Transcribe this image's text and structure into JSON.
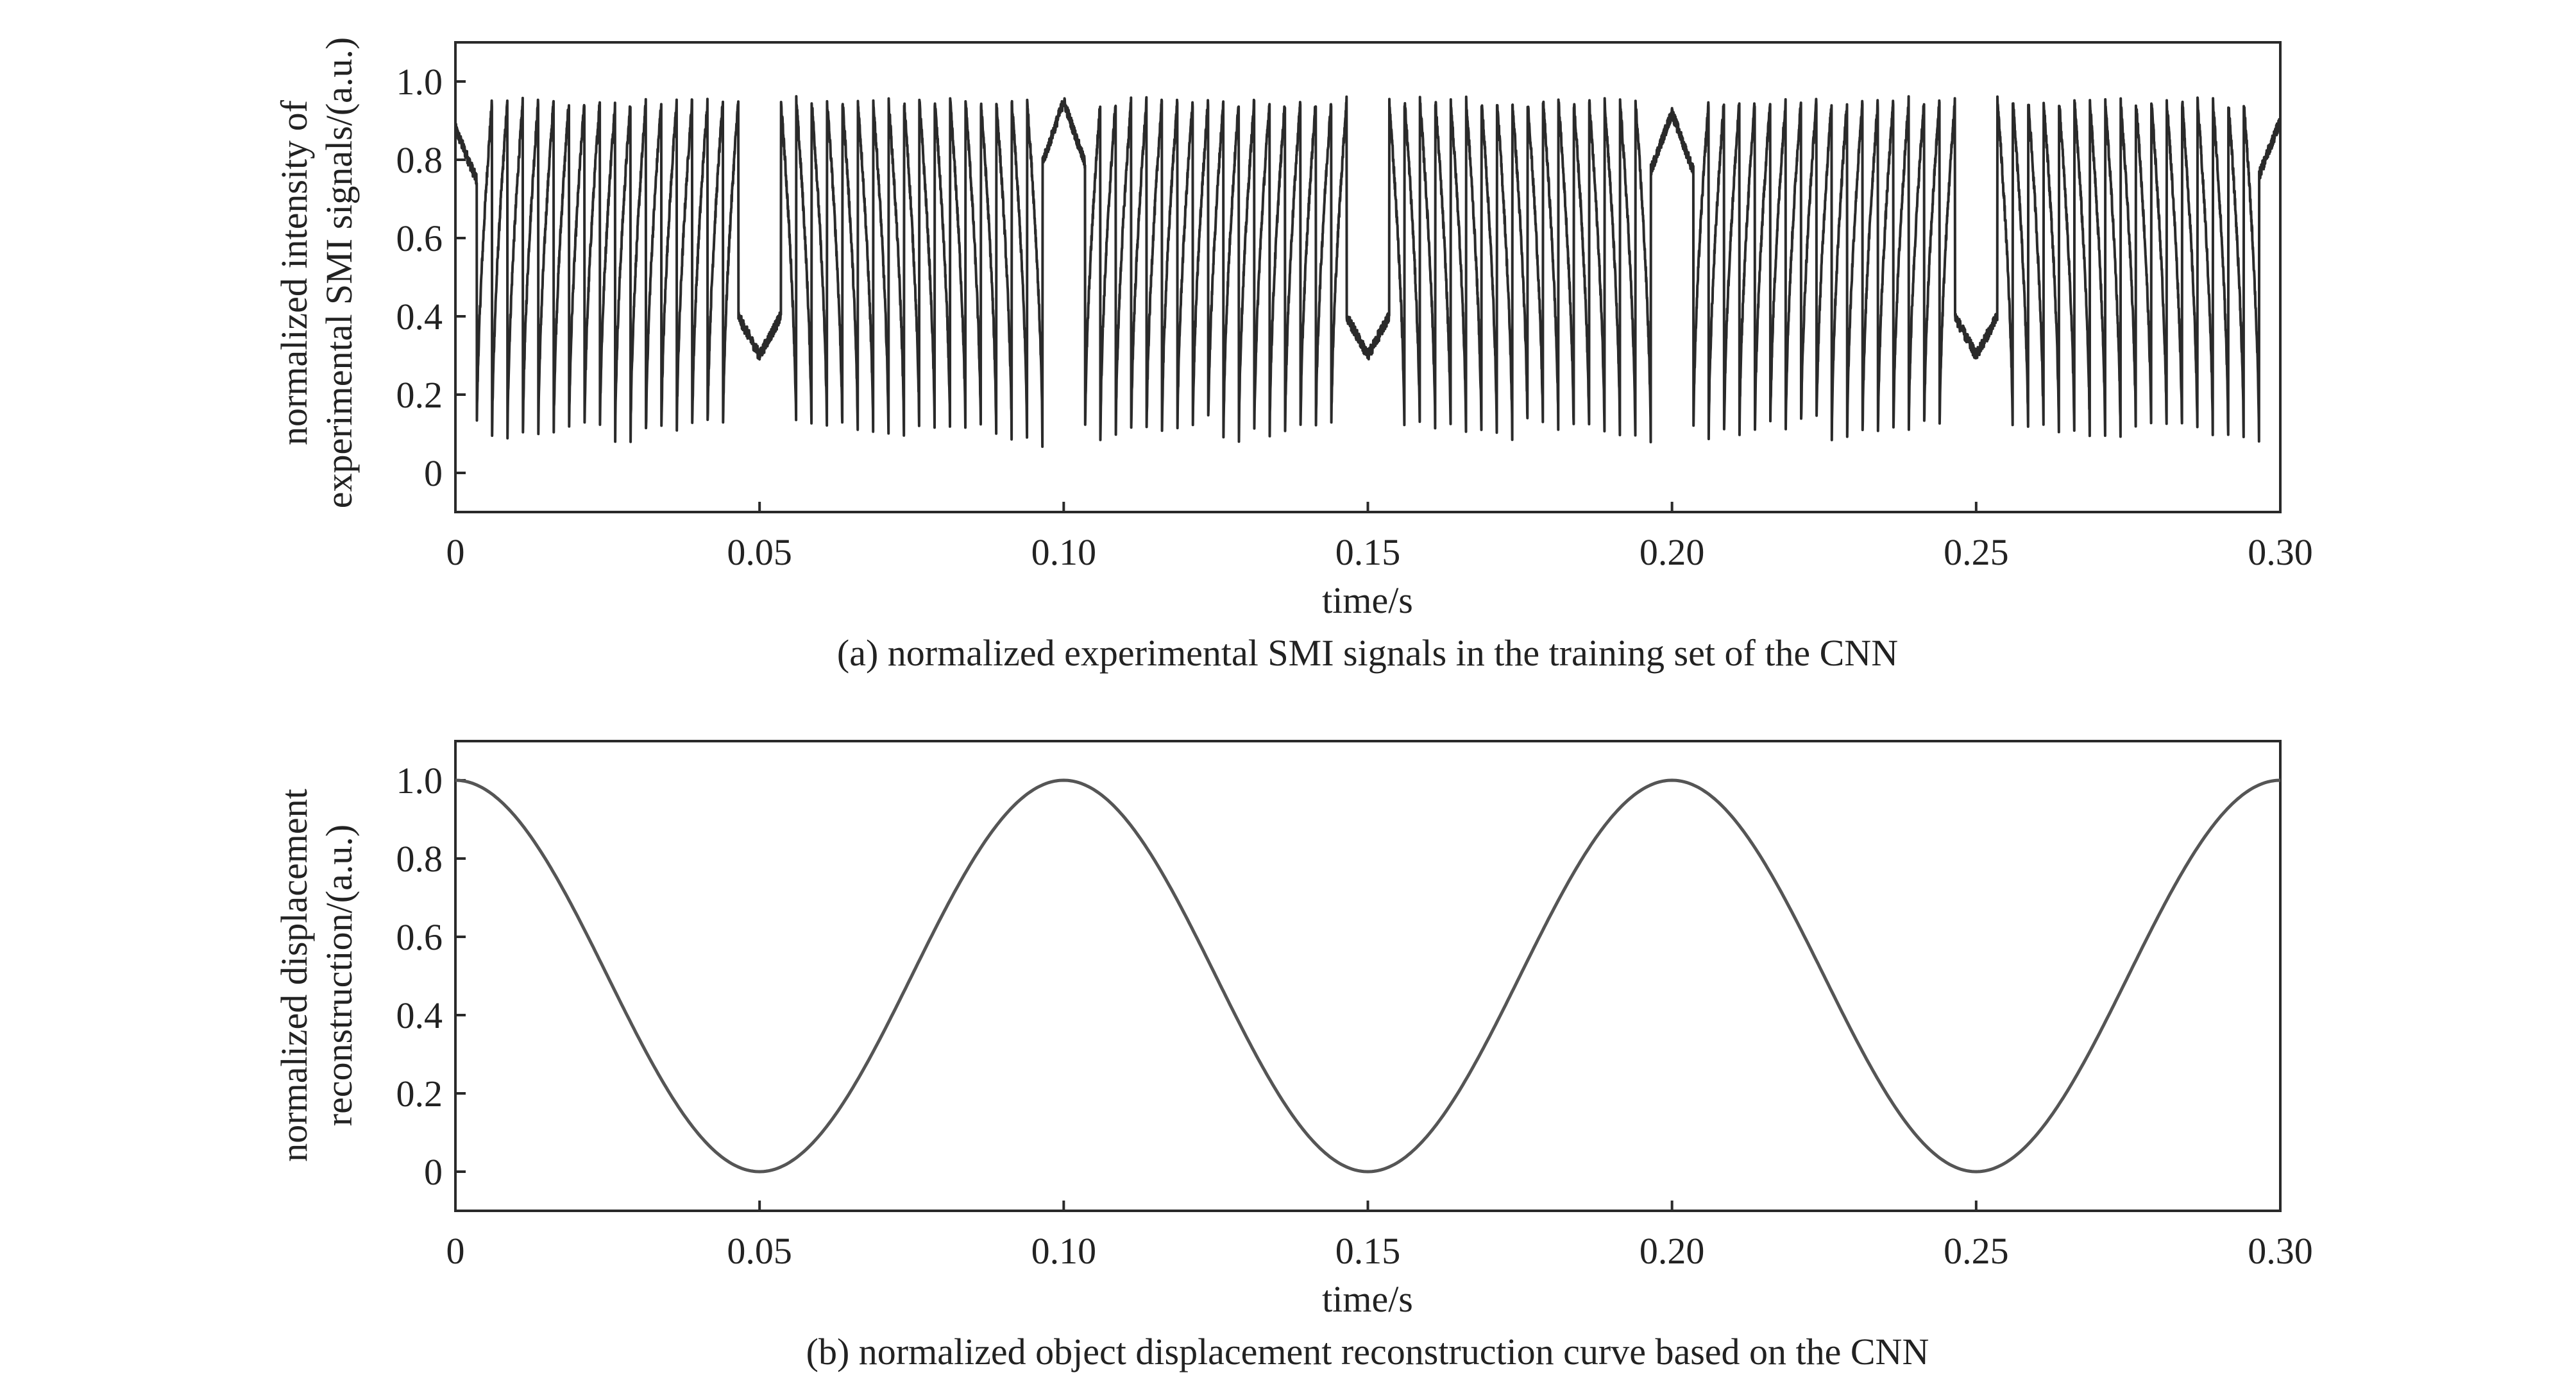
{
  "chart_data": [
    {
      "id": "a",
      "type": "line",
      "caption": "(a) normalized experimental SMI signals in the training set of the CNN",
      "xlabel": "time/s",
      "ylabel_lines": [
        "normalized intensity of",
        "experimental SMI signals/(a.u.)"
      ],
      "xlim": [
        0,
        0.3
      ],
      "ylim": [
        -0.1,
        1.1
      ],
      "x_ticks": [
        0,
        0.05,
        0.1,
        0.15,
        0.2,
        0.25,
        0.3
      ],
      "x_tick_labels": [
        "0",
        "0.05",
        "0.10",
        "0.15",
        "0.20",
        "0.25",
        "0.30"
      ],
      "y_ticks": [
        0,
        0.2,
        0.4,
        0.6,
        0.8,
        1.0
      ],
      "y_tick_labels": [
        "0",
        "0.2",
        "0.4",
        "0.6",
        "0.8",
        "1.0"
      ],
      "line_color": "#2a2a2a",
      "series": [
        {
          "name": "SMI signal",
          "signal_model": {
            "displacement_period_s": 0.1,
            "fringes_per_half_period": 17,
            "fringe_high": 0.95,
            "fringe_low": 0.07,
            "turning_points_s": [
              0,
              0.05,
              0.1,
              0.15,
              0.2,
              0.25,
              0.3
            ],
            "turning_point_levels": [
              0.88,
              0.3,
              0.95,
              0.3,
              0.92,
              0.3,
              0.9
            ],
            "noise_amplitude": 0.03
          }
        }
      ]
    },
    {
      "id": "b",
      "type": "line",
      "caption": "(b) normalized object displacement reconstruction curve based on the CNN",
      "xlabel": "time/s",
      "ylabel_lines": [
        "normalized displacement",
        "reconstruction/(a.u.)"
      ],
      "xlim": [
        0,
        0.3
      ],
      "ylim": [
        -0.1,
        1.1
      ],
      "x_ticks": [
        0,
        0.05,
        0.1,
        0.15,
        0.2,
        0.25,
        0.3
      ],
      "x_tick_labels": [
        "0",
        "0.05",
        "0.10",
        "0.15",
        "0.20",
        "0.25",
        "0.30"
      ],
      "y_ticks": [
        0,
        0.2,
        0.4,
        0.6,
        0.8,
        1.0
      ],
      "y_tick_labels": [
        "0",
        "0.2",
        "0.4",
        "0.6",
        "0.8",
        "1.0"
      ],
      "line_color": "#555555",
      "series": [
        {
          "name": "displacement",
          "x": [
            0,
            0.025,
            0.05,
            0.075,
            0.1,
            0.125,
            0.15,
            0.175,
            0.2,
            0.225,
            0.25,
            0.275,
            0.3
          ],
          "y": [
            1.0,
            0.5,
            0.0,
            0.5,
            1.0,
            0.5,
            0.0,
            0.5,
            1.0,
            0.5,
            0.0,
            0.5,
            1.0
          ],
          "curve": "cosine",
          "period_s": 0.1
        }
      ]
    }
  ]
}
